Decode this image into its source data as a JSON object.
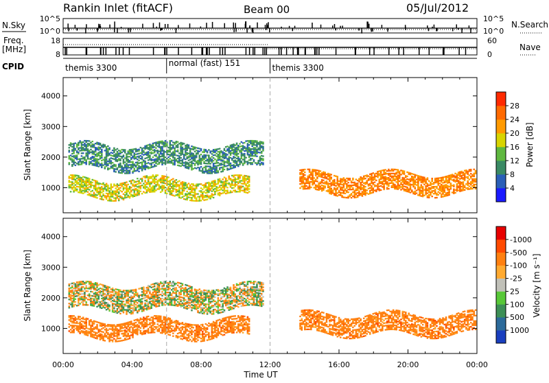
{
  "header": {
    "site": "Rankin Inlet (fitACF)",
    "beam": "Beam 00",
    "date": "05/Jul/2012"
  },
  "nsky_panel": {
    "label": "N.Sky",
    "right_label": "N.Search",
    "ticks_left": [
      "10^5",
      "10^0"
    ],
    "ticks_right": [
      "10^5",
      "10^0"
    ]
  },
  "freq_panel": {
    "label_line1": "Freq.",
    "label_line2": "[MHz]",
    "right_label": "Nave",
    "ticks_left": [
      "18",
      "8"
    ],
    "ticks_right": [
      "60",
      "0"
    ]
  },
  "cpid": {
    "label": "CPID",
    "segments": [
      {
        "label": "themis 3300",
        "start_hour": 0,
        "end_hour": 6
      },
      {
        "label": "normal (fast) 151",
        "start_hour": 6,
        "end_hour": 12
      },
      {
        "label": "themis 3300",
        "start_hour": 12,
        "end_hour": 24
      }
    ]
  },
  "chart_data": [
    {
      "type": "heatmap",
      "quantity": "power",
      "ylabel": "Slant Range [km]",
      "xlabel": "Time UT",
      "xlim": [
        0,
        24
      ],
      "ylim": [
        180,
        4600
      ],
      "xticks": [
        "00:00",
        "04:00",
        "08:00",
        "12:00",
        "16:00",
        "20:00",
        "00:00"
      ],
      "yticks": [
        1000,
        2000,
        3000,
        4000
      ],
      "colorbar": {
        "label": "Power [dB]",
        "ticks": [
          "4",
          "8",
          "12",
          "16",
          "20",
          "24",
          "28"
        ],
        "colors": [
          "#1a1aff",
          "#2a5fb8",
          "#3a8a64",
          "#5fb840",
          "#d8d400",
          "#ff9a00",
          "#ff6a00",
          "#ff2a00"
        ]
      },
      "echo_bands": [
        {
          "t_start": 0.3,
          "t_end": 11.6,
          "range_low": 1600,
          "range_high": 2400,
          "power_db": 10
        },
        {
          "t_start": 0.3,
          "t_end": 10.8,
          "range_low": 700,
          "range_high": 1250,
          "power_db": 18
        },
        {
          "t_start": 13.7,
          "t_end": 23.9,
          "range_low": 800,
          "range_high": 1450,
          "power_db": 24
        }
      ]
    },
    {
      "type": "heatmap",
      "quantity": "velocity",
      "ylabel": "Slant Range [km]",
      "xlabel": "Time UT",
      "xlim": [
        0,
        24
      ],
      "ylim": [
        180,
        4600
      ],
      "xticks": [
        "00:00",
        "04:00",
        "08:00",
        "12:00",
        "16:00",
        "20:00",
        "00:00"
      ],
      "yticks": [
        1000,
        2000,
        3000,
        4000
      ],
      "colorbar": {
        "label": "Velocity [m s⁻¹]",
        "ticks": [
          "1000",
          "500",
          "100",
          "25",
          "-25",
          "-100",
          "-500",
          "-1000"
        ],
        "colors": [
          "#1a3fbf",
          "#2c6a9a",
          "#3d8f56",
          "#58c838",
          "#c0c0b8",
          "#ffaa30",
          "#ff8010",
          "#ff4a00",
          "#e80000"
        ]
      },
      "echo_bands": [
        {
          "t_start": 0.3,
          "t_end": 11.6,
          "range_low": 1600,
          "range_high": 2400,
          "velocity": 0
        },
        {
          "t_start": 0.3,
          "t_end": 10.8,
          "range_low": 700,
          "range_high": 1250,
          "velocity": -300
        },
        {
          "t_start": 13.7,
          "t_end": 23.9,
          "range_low": 800,
          "range_high": 1450,
          "velocity": -300
        }
      ]
    }
  ]
}
